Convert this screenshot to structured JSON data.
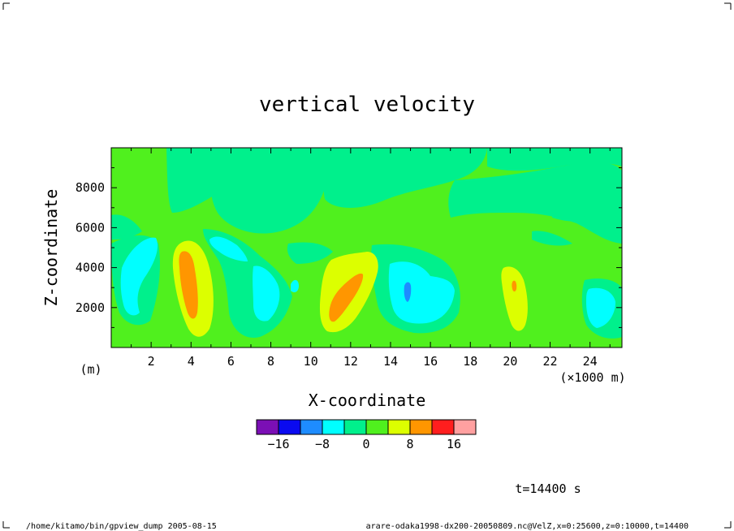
{
  "chart_data": {
    "type": "heatmap",
    "title": "vertical velocity",
    "xlabel": "X-coordinate",
    "ylabel": "Z-coordinate",
    "x_unit": "(×1000 m)",
    "y_unit": "(m)",
    "xlim": [
      0,
      25600
    ],
    "ylim": [
      0,
      10000
    ],
    "x_ticks": [
      "2",
      "4",
      "6",
      "8",
      "10",
      "12",
      "14",
      "16",
      "18",
      "20",
      "22",
      "24"
    ],
    "y_ticks": [
      "2000",
      "4000",
      "6000",
      "8000"
    ],
    "contour_levels": [
      -20,
      -16,
      -12,
      -8,
      -4,
      0,
      4,
      8,
      12,
      16,
      20
    ],
    "colorbar_colors": [
      "#7b0fb5",
      "#0a0af0",
      "#1e8cff",
      "#00ffff",
      "#00f08c",
      "#50f01e",
      "#dcff00",
      "#ff9600",
      "#ff1e1e",
      "#ffa0a0"
    ],
    "colorbar_labels": [
      "−16",
      "−8",
      "0",
      "8",
      "16"
    ],
    "background_level_color": "#50f01e",
    "features": [
      {
        "kind": "updraft",
        "x_km": 3.8,
        "z_m": 3000,
        "max": 12
      },
      {
        "kind": "downdraft",
        "x_km": 1.3,
        "z_m": 3400,
        "min": -8
      },
      {
        "kind": "downdraft",
        "x_km": 6.2,
        "z_m": 4600,
        "min": -8
      },
      {
        "kind": "downdraft",
        "x_km": 7.8,
        "z_m": 2500,
        "min": -8
      },
      {
        "kind": "updraft",
        "x_km": 12.0,
        "z_m": 3000,
        "max": 12
      },
      {
        "kind": "downdraft",
        "x_km": 15.2,
        "z_m": 2700,
        "min": -12
      },
      {
        "kind": "updraft",
        "x_km": 20.1,
        "z_m": 2600,
        "max": 12
      },
      {
        "kind": "downdraft",
        "x_km": 24.6,
        "z_m": 1900,
        "min": -8
      }
    ],
    "time_label": "t=14400 s"
  },
  "footer": {
    "left": "/home/kitamo/bin/gpview_dump  2005-08-15",
    "right": "arare-odaka1998-dx200-20050809.nc@VelZ,x=0:25600,z=0:10000,t=14400"
  }
}
